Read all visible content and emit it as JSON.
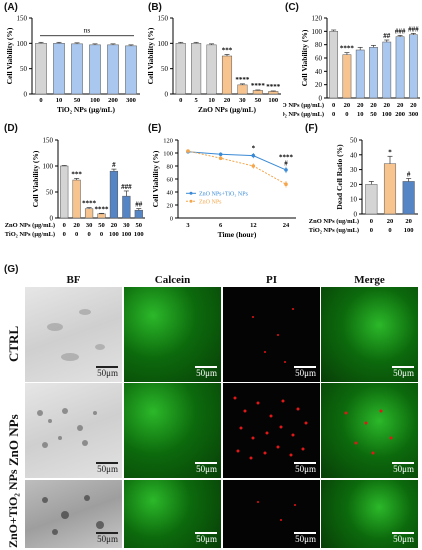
{
  "panel_labels": [
    "(A)",
    "(B)",
    "(C)",
    "(D)",
    "(E)",
    "(F)",
    "(G)"
  ],
  "colors": {
    "grey": "#d4d4d4",
    "blue": "#a9c7ef",
    "orange": "#f7c48f",
    "dark_blue": "#5585c4",
    "orange_line": "#f5a54a",
    "blue_line": "#3a8ad6"
  },
  "chart_data": [
    {
      "id": "A",
      "type": "bar",
      "ylabel": "Cell Viability (%)",
      "xlabel": "TiO₂ NPs (μg/mL)",
      "categories": [
        "0",
        "10",
        "50",
        "100",
        "200",
        "300"
      ],
      "values": [
        100,
        100,
        99,
        97,
        97,
        95
      ],
      "errors": [
        2,
        2,
        2,
        2,
        2,
        2
      ],
      "ylim": [
        0,
        150
      ],
      "yticks": [
        "0",
        "50",
        "100",
        "150"
      ],
      "annotation": "ns"
    },
    {
      "id": "B",
      "type": "bar",
      "ylabel": "Cell Viability (%)",
      "xlabel": "ZnO NPs (μg/mL)",
      "categories": [
        "0",
        "5",
        "10",
        "20",
        "30",
        "50",
        "100"
      ],
      "values": [
        100,
        100,
        97,
        75,
        18,
        7,
        5
      ],
      "errors": [
        2,
        2,
        2,
        3,
        2,
        1,
        1
      ],
      "ylim": [
        0,
        150
      ],
      "yticks": [
        "0",
        "50",
        "100",
        "150"
      ],
      "stars": [
        "",
        "",
        "",
        "***",
        "****",
        "****",
        "****"
      ]
    },
    {
      "id": "C",
      "type": "bar",
      "ylabel": "Cell Viability (%)",
      "row_labels": [
        "ZnO NPs (μg/mL)",
        "TiO₂ NPs (μg/mL)"
      ],
      "rows": [
        [
          "0",
          "20",
          "20",
          "20",
          "20",
          "20",
          "20"
        ],
        [
          "0",
          "0",
          "10",
          "50",
          "100",
          "200",
          "300"
        ]
      ],
      "values": [
        100,
        65,
        72,
        76,
        84,
        92,
        95
      ],
      "errors": [
        2,
        3,
        4,
        3,
        3,
        2,
        2
      ],
      "ylim": [
        0,
        120
      ],
      "yticks": [
        "0",
        "20",
        "40",
        "60",
        "80",
        "100",
        "120"
      ],
      "stars": [
        "",
        "****",
        "",
        "",
        "##",
        "###",
        "###"
      ]
    },
    {
      "id": "D",
      "type": "bar",
      "ylabel": "Cell Viability (%)",
      "row_labels": [
        "ZnO NPs (μg/mL)",
        "TiO₂ NPs (μg/mL)"
      ],
      "rows": [
        [
          "0",
          "20",
          "30",
          "50",
          "20",
          "30",
          "50"
        ],
        [
          "0",
          "0",
          "0",
          "0",
          "100",
          "100",
          "100"
        ]
      ],
      "values": [
        100,
        73,
        18,
        8,
        90,
        42,
        15
      ],
      "errors": [
        1,
        3,
        2,
        1,
        4,
        10,
        3
      ],
      "ylim": [
        0,
        150
      ],
      "yticks": [
        "0",
        "50",
        "100",
        "150"
      ],
      "stars": [
        "",
        "***",
        "****",
        "****",
        "#",
        "###",
        "##"
      ]
    },
    {
      "id": "E",
      "type": "line",
      "ylabel": "Cell Viability (%)",
      "xlabel": "Time (hour)",
      "x": [
        "3",
        "6",
        "12",
        "24"
      ],
      "ylim": [
        0,
        120
      ],
      "yticks": [
        "0",
        "20",
        "40",
        "60",
        "80",
        "100",
        "120"
      ],
      "series": [
        {
          "name": "ZnO NPs+TiO₂ NPs",
          "values": [
            102,
            98,
            96,
            74
          ],
          "errors": [
            2,
            3,
            4,
            5
          ]
        },
        {
          "name": "ZnO NPs",
          "values": [
            103,
            92,
            80,
            52
          ],
          "errors": [
            2,
            3,
            4,
            5
          ]
        }
      ],
      "annotations": [
        "*",
        "****",
        "#"
      ]
    },
    {
      "id": "F",
      "type": "bar",
      "ylabel": "Dead Cell Ratio (%)",
      "row_labels": [
        "ZnO NPs  (ug/mL)",
        "TiO₂ NPs  (ug/mL)"
      ],
      "rows": [
        [
          "0",
          "20",
          "20"
        ],
        [
          "0",
          "0",
          "100"
        ]
      ],
      "values": [
        20,
        34,
        22
      ],
      "errors": [
        2,
        5,
        2
      ],
      "ylim": [
        0,
        50
      ],
      "yticks": [
        "0",
        "10",
        "20",
        "30",
        "40",
        "50"
      ],
      "stars": [
        "",
        "*",
        "#"
      ]
    }
  ],
  "micrographs": {
    "columns": [
      "BF",
      "Calcein",
      "PI",
      "Merge"
    ],
    "rows": [
      "CTRL",
      "ZnO NPs",
      "ZnO+TiO₂ NPs"
    ],
    "scale_label": "50μm"
  }
}
